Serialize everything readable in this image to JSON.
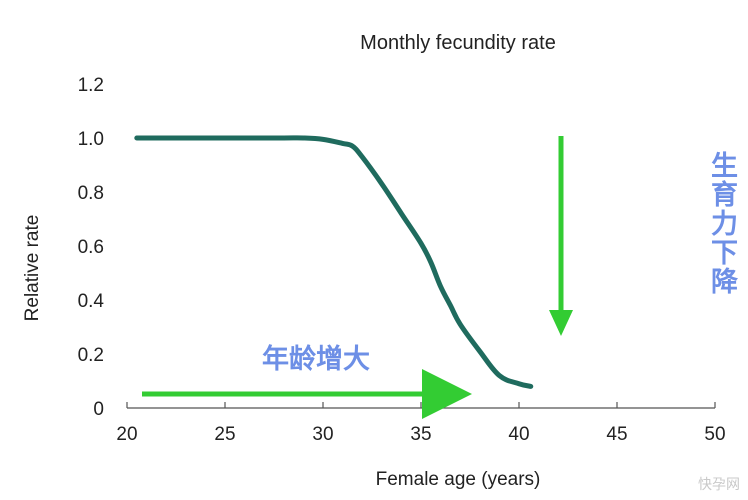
{
  "chart_data": {
    "type": "line",
    "title": "Monthly fecundity rate",
    "xlabel": "Female age (years)",
    "ylabel": "Relative rate",
    "xlim": [
      20,
      50
    ],
    "ylim": [
      0,
      1.2
    ],
    "x_ticks": [
      "20",
      "25",
      "30",
      "35",
      "40",
      "45",
      "50"
    ],
    "y_ticks": [
      "0",
      "0.2",
      "0.4",
      "0.6",
      "0.8",
      "1.0",
      "1.2"
    ],
    "grid": false,
    "line_color": "#1f6b5e",
    "series": [
      {
        "x": [
          20.5,
          22,
          24,
          26,
          28,
          29,
          30,
          31,
          31.5,
          32,
          33,
          34,
          35,
          35.5,
          36,
          36.5,
          37,
          38,
          39,
          40,
          40.6
        ],
        "y": [
          1.0,
          1.0,
          1.0,
          1.0,
          1.0,
          1.0,
          0.995,
          0.98,
          0.97,
          0.93,
          0.83,
          0.72,
          0.61,
          0.54,
          0.45,
          0.38,
          0.31,
          0.21,
          0.12,
          0.09,
          0.08
        ]
      }
    ],
    "annotations": [
      {
        "text": "年龄增大",
        "color": "#6d8fe6"
      },
      {
        "text": "生育力下降",
        "color": "#6d8fe6"
      }
    ],
    "arrow_color": "#33cc33"
  },
  "watermark": "快孕网"
}
